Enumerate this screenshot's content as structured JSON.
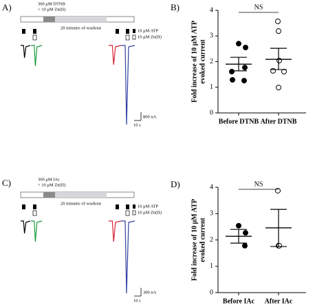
{
  "panel_a": {
    "label": "A)",
    "treatment": [
      "300 μM DTNB",
      "+ 10 μM Zn(II)"
    ],
    "washout": "20 minutes of washout",
    "legend": [
      "10 μM ATP",
      "10 μM Zn(II)"
    ],
    "scale_current": "800 nA",
    "scale_time": "10 s"
  },
  "panel_c": {
    "label": "C)",
    "treatment": [
      "300 μM IAc",
      "+ 10 μM Zn(II)"
    ],
    "washout": "20 minutes of washout",
    "legend": [
      "10 μM ATP",
      "10 μM Zn(II)"
    ],
    "scale_current": "300 nA",
    "scale_time": "10 s"
  },
  "chart_data": [
    {
      "type": "dot",
      "label": "B)",
      "ylabel": [
        "Fold increase of 10 μM ATP",
        "evoked current"
      ],
      "categories": [
        "Before DTNB",
        "After DTNB"
      ],
      "points": [
        [
          2.7,
          2.55,
          1.77,
          1.61,
          1.29,
          1.26
        ],
        [
          3.57,
          3.19,
          2.04,
          1.61,
          1.64,
          0.99
        ]
      ],
      "markers": [
        "filled",
        "open"
      ],
      "means": [
        1.9,
        2.09
      ],
      "sem_low": [
        1.64,
        1.69
      ],
      "sem_high": [
        2.17,
        2.52
      ],
      "annotation": "NS",
      "ylim": [
        0,
        4
      ],
      "yticks": [
        0,
        1,
        2,
        3,
        4
      ],
      "color": "#000000"
    },
    {
      "type": "dot",
      "label": "D)",
      "ylabel": [
        "Fold increase of 10 μM ATP",
        "evoked current"
      ],
      "categories": [
        "Before IAc",
        "After IAc"
      ],
      "points": [
        [
          2.54,
          2.27,
          1.78
        ],
        [
          3.87,
          1.78,
          1.78
        ]
      ],
      "markers": [
        "filled",
        "open"
      ],
      "means": [
        2.14,
        2.46
      ],
      "sem_low": [
        1.88,
        1.75
      ],
      "sem_high": [
        2.4,
        3.16
      ],
      "annotation": "NS",
      "ylim": [
        0,
        4
      ],
      "yticks": [
        0,
        1,
        2,
        3,
        4
      ],
      "color": "#000000"
    }
  ]
}
